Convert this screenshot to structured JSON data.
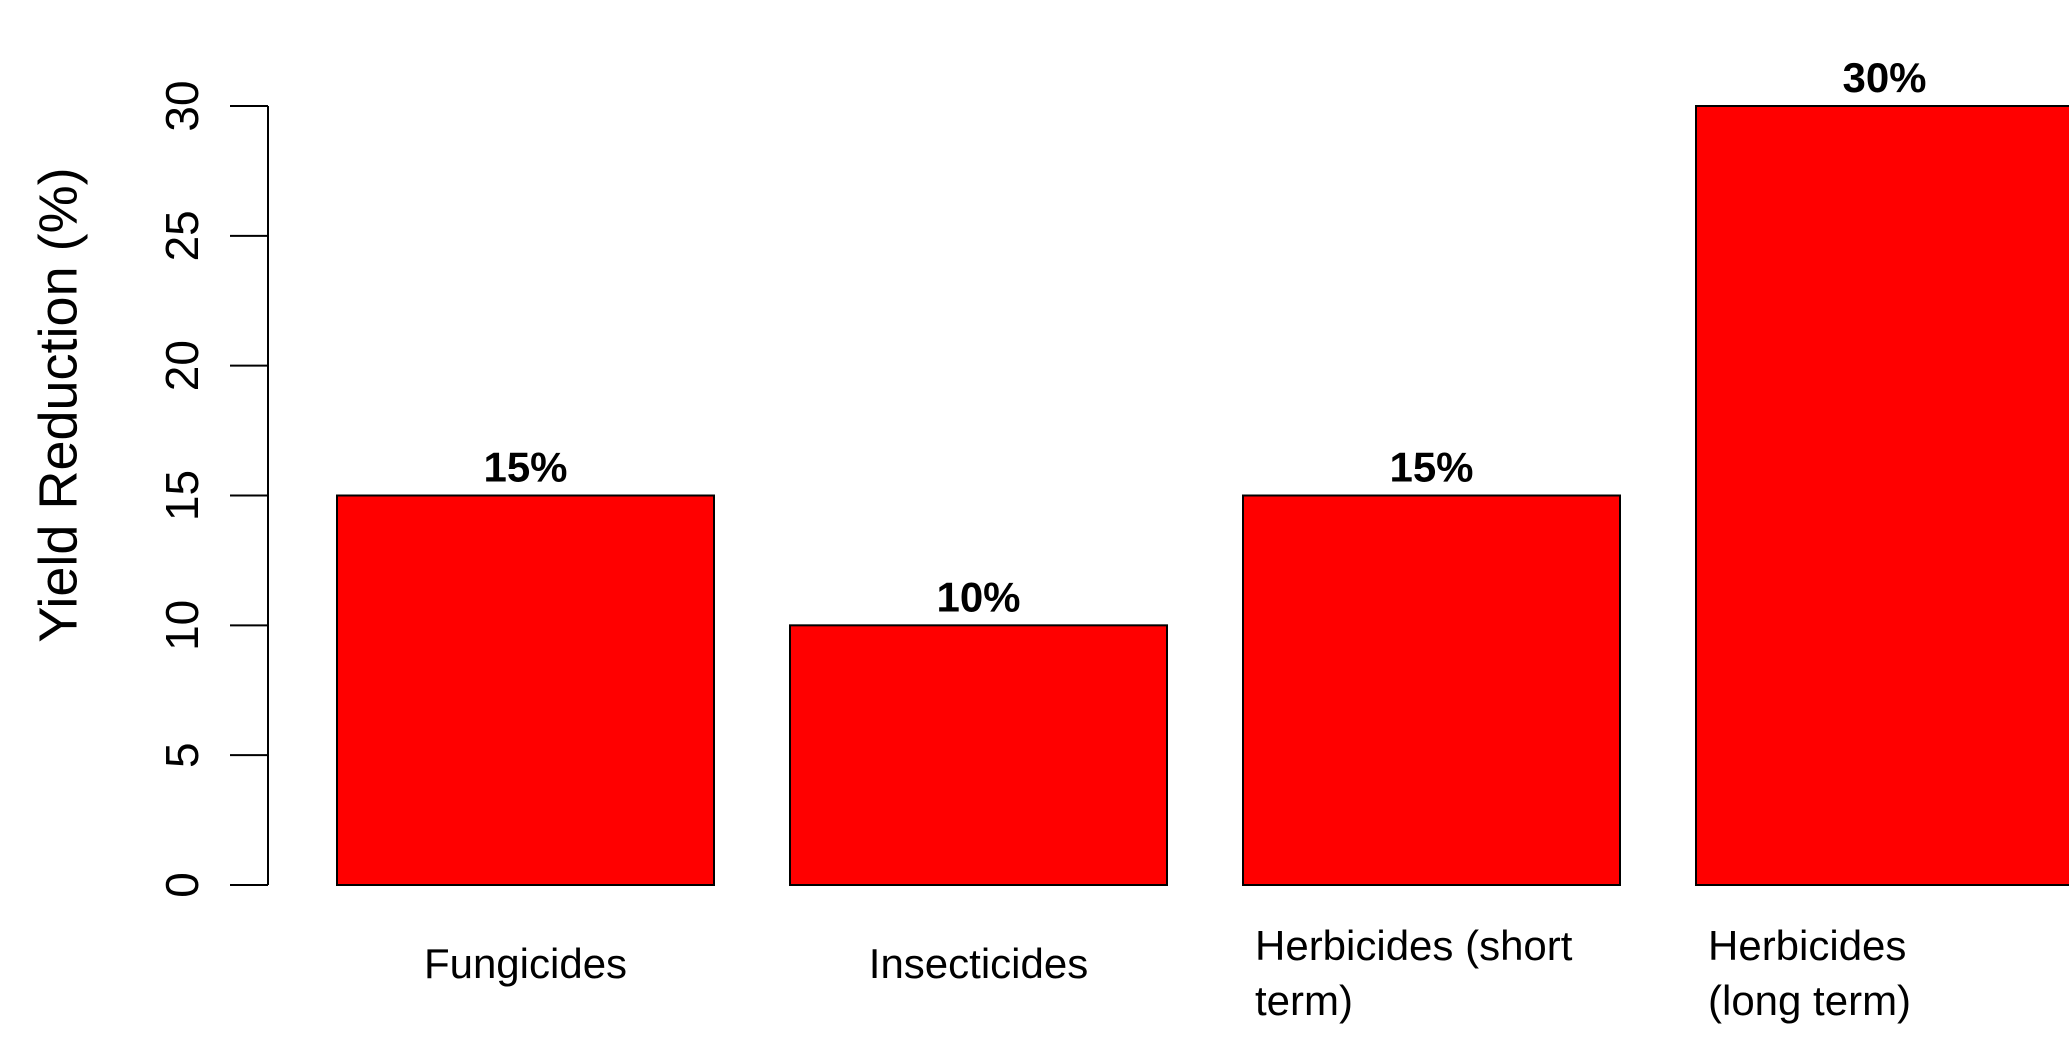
{
  "chart_data": {
    "type": "bar",
    "title": "",
    "xlabel": "",
    "ylabel": "Yield Reduction (%)",
    "ylim": [
      0,
      30
    ],
    "yticks": [
      0,
      5,
      10,
      15,
      20,
      25,
      30
    ],
    "grid": false,
    "categories": [
      [
        "Fungicides"
      ],
      [
        "Insecticides"
      ],
      [
        "Herbicides (short",
        "term)"
      ],
      [
        "Herbicides",
        "(long term)"
      ]
    ],
    "values": [
      15,
      10,
      15,
      30
    ],
    "value_labels": [
      "15%",
      "10%",
      "15%",
      "30%"
    ],
    "bar_color": "#ff0000"
  }
}
